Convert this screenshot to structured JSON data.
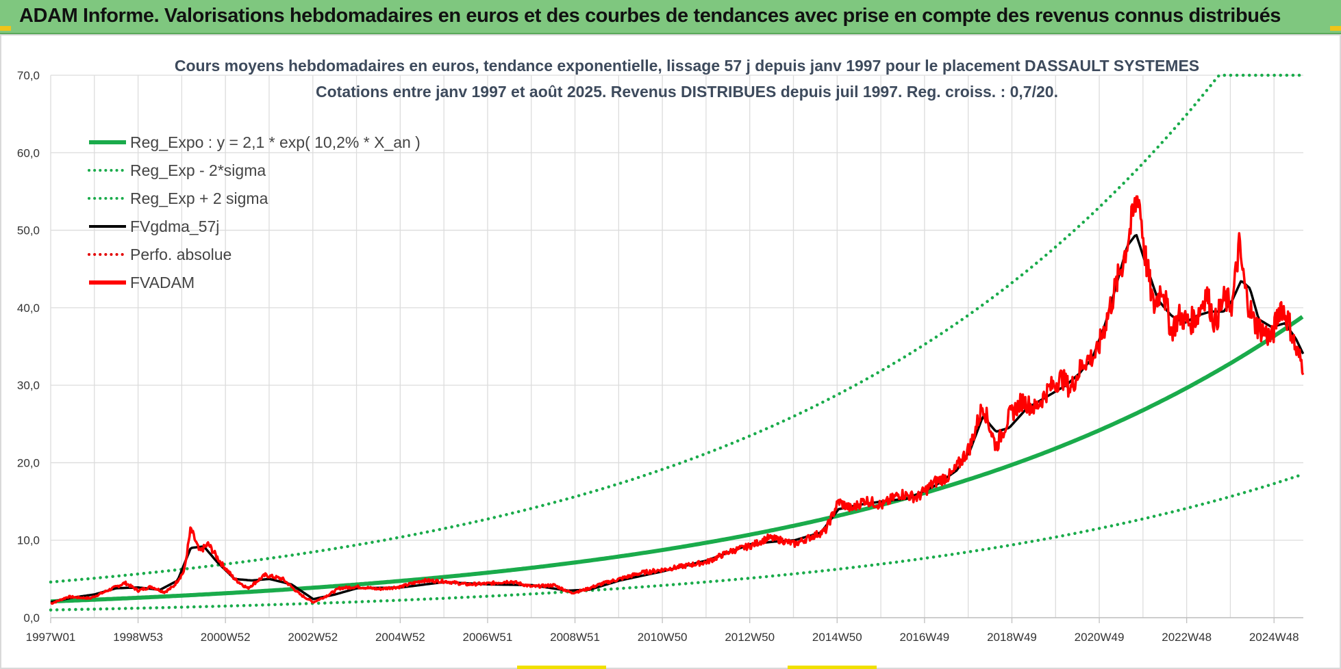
{
  "banner": {
    "title": "ADAM Informe. Valorisations hebdomadaires en euros et des courbes de tendances avec prise en compte des revenus connus distribués"
  },
  "colors": {
    "banner_bg": "#7fc77f",
    "reg_expo": "#1aab4b",
    "reg_sigma": "#1aab4b",
    "fvgdma": "#000000",
    "perfo": "#e30000",
    "fvadam": "#ff0000",
    "grid": "#dcdcdc"
  },
  "chart_data": {
    "type": "line",
    "title": "Cours moyens hebdomadaires en euros, tendance exponentielle, lissage 57 j depuis janv 1997  pour le placement DASSAULT SYSTEMES",
    "subtitle": "Cotations entre janv 1997 et août 2025. Revenus DISTRIBUES depuis juil 1997. Reg. croiss. : 0,7/20.",
    "x_start_year": 1997.0,
    "x_end_year": 2025.62,
    "xtick_labels": [
      "1997W01",
      "1998W53",
      "2000W52",
      "2002W52",
      "2004W52",
      "2006W51",
      "2008W51",
      "2010W50",
      "2012W50",
      "2014W50",
      "2016W49",
      "2018W49",
      "2020W49",
      "2022W48",
      "2024W48"
    ],
    "ytick_labels": [
      "0,0",
      "10,0",
      "20,0",
      "30,0",
      "40,0",
      "50,0",
      "60,0",
      "70,0"
    ],
    "ylim": [
      0,
      70
    ],
    "grid": true,
    "legend_position": "top-left",
    "legend": [
      {
        "label": "Reg_Expo : y = 2,1 * exp( 10,2% *  X_an )",
        "style": "solid-thick",
        "color": "#1aab4b"
      },
      {
        "label": "Reg_Exp - 2*sigma",
        "style": "dotted",
        "color": "#1aab4b"
      },
      {
        "label": "Reg_Exp + 2 sigma",
        "style": "dotted",
        "color": "#1aab4b"
      },
      {
        "label": "FVgdma_57j",
        "style": "solid",
        "color": "#000000"
      },
      {
        "label": "Perfo. absolue",
        "style": "dotted",
        "color": "#e30000"
      },
      {
        "label": "FVADAM",
        "style": "solid-thick",
        "color": "#ff0000"
      }
    ],
    "series": [
      {
        "name": "Reg_Expo : y = 2,1 * exp( 10,2% *  X_an )",
        "a": 2.1,
        "rate": 0.102
      },
      {
        "name": "Reg_Exp - 2*sigma",
        "a": 1.0,
        "rate": 0.102
      },
      {
        "name": "Reg_Exp + 2 sigma",
        "a": 4.6,
        "rate": 0.102,
        "cap": 70
      },
      {
        "name": "FVADAM",
        "x": [
          1997.0,
          1997.4,
          1997.9,
          1998.3,
          1998.7,
          1999.0,
          1999.3,
          1999.6,
          1999.8,
          2000.05,
          2000.2,
          2000.4,
          2000.6,
          2000.9,
          2001.2,
          2001.5,
          2001.9,
          2002.3,
          2002.7,
          2003.0,
          2003.3,
          2003.6,
          2004.0,
          2004.5,
          2005.0,
          2005.5,
          2006.0,
          2006.5,
          2007.0,
          2007.5,
          2008.0,
          2008.5,
          2008.9,
          2009.2,
          2009.6,
          2010.0,
          2010.5,
          2011.0,
          2011.5,
          2012.0,
          2012.5,
          2013.0,
          2013.4,
          2013.7,
          2014.0,
          2014.4,
          2014.7,
          2015.0,
          2015.3,
          2015.6,
          2016.0,
          2016.4,
          2016.8,
          2017.2,
          2017.6,
          2018.0,
          2018.3,
          2018.6,
          2018.9,
          2019.2,
          2019.5,
          2019.8,
          2020.1,
          2020.3,
          2020.6,
          2020.9,
          2021.2,
          2021.5,
          2021.7,
          2021.85,
          2022.0,
          2022.2,
          2022.4,
          2022.6,
          2022.8,
          2023.0,
          2023.2,
          2023.4,
          2023.6,
          2023.8,
          2024.0,
          2024.15,
          2024.3,
          2024.5,
          2024.7,
          2024.9,
          2025.1,
          2025.3,
          2025.45,
          2025.62
        ],
        "values": [
          1.8,
          2.7,
          2.5,
          3.5,
          4.5,
          3.5,
          4.0,
          3.3,
          4.0,
          6.0,
          11.5,
          8.5,
          9.5,
          7.0,
          5.0,
          3.8,
          5.5,
          5.0,
          3.0,
          2.0,
          2.8,
          3.8,
          4.0,
          3.7,
          4.0,
          4.8,
          4.7,
          4.3,
          4.4,
          4.7,
          4.0,
          4.2,
          3.2,
          3.6,
          4.4,
          5.0,
          5.8,
          6.2,
          6.7,
          7.2,
          8.5,
          9.3,
          10.3,
          10.0,
          9.5,
          10.5,
          11.2,
          15.0,
          14.0,
          15.2,
          14.5,
          16.0,
          15.5,
          17.5,
          18.5,
          22.0,
          27.5,
          22.0,
          26.0,
          28.0,
          27.0,
          29.5,
          31.0,
          29.5,
          33.0,
          34.0,
          40.0,
          46.0,
          51.0,
          55.0,
          47.0,
          40.0,
          43.0,
          37.0,
          39.0,
          38.0,
          39.0,
          42.0,
          38.0,
          41.0,
          40.5,
          48.0,
          42.0,
          38.0,
          37.0,
          36.0,
          40.5,
          38.0,
          34.5,
          32.5
        ]
      },
      {
        "name": "FVgdma_57j",
        "x": [
          1997.0,
          1997.5,
          1998.0,
          1998.5,
          1999.0,
          1999.5,
          1999.9,
          2000.2,
          2000.5,
          2000.8,
          2001.2,
          2001.6,
          2002.0,
          2002.5,
          2003.0,
          2003.5,
          2004.0,
          2005.0,
          2006.0,
          2007.0,
          2008.0,
          2008.8,
          2009.3,
          2010.0,
          2011.0,
          2012.0,
          2013.0,
          2013.5,
          2014.0,
          2014.6,
          2015.0,
          2015.5,
          2016.0,
          2016.6,
          2017.2,
          2017.7,
          2018.0,
          2018.3,
          2018.6,
          2018.9,
          2019.3,
          2019.6,
          2019.9,
          2020.2,
          2020.5,
          2020.8,
          2021.1,
          2021.4,
          2021.6,
          2021.8,
          2022.0,
          2022.3,
          2022.6,
          2022.9,
          2023.2,
          2023.5,
          2023.8,
          2024.0,
          2024.2,
          2024.4,
          2024.6,
          2024.9,
          2025.2,
          2025.45,
          2025.62
        ],
        "values": [
          2.0,
          2.6,
          3.0,
          3.8,
          3.9,
          3.6,
          4.8,
          9.0,
          9.2,
          7.2,
          5.0,
          4.8,
          5.0,
          4.3,
          2.4,
          3.0,
          3.8,
          3.9,
          4.6,
          4.3,
          4.2,
          3.5,
          3.6,
          4.8,
          6.0,
          7.4,
          9.5,
          9.8,
          10.0,
          11.0,
          14.0,
          14.6,
          15.0,
          15.4,
          17.0,
          19.0,
          21.5,
          26.0,
          24.0,
          24.5,
          27.0,
          28.0,
          29.0,
          30.0,
          31.5,
          33.5,
          38.0,
          44.0,
          48.0,
          49.5,
          46.0,
          41.0,
          39.0,
          38.0,
          39.0,
          39.5,
          39.5,
          41.0,
          43.5,
          42.5,
          38.5,
          37.5,
          38.0,
          36.0,
          34.0
        ]
      }
    ]
  }
}
